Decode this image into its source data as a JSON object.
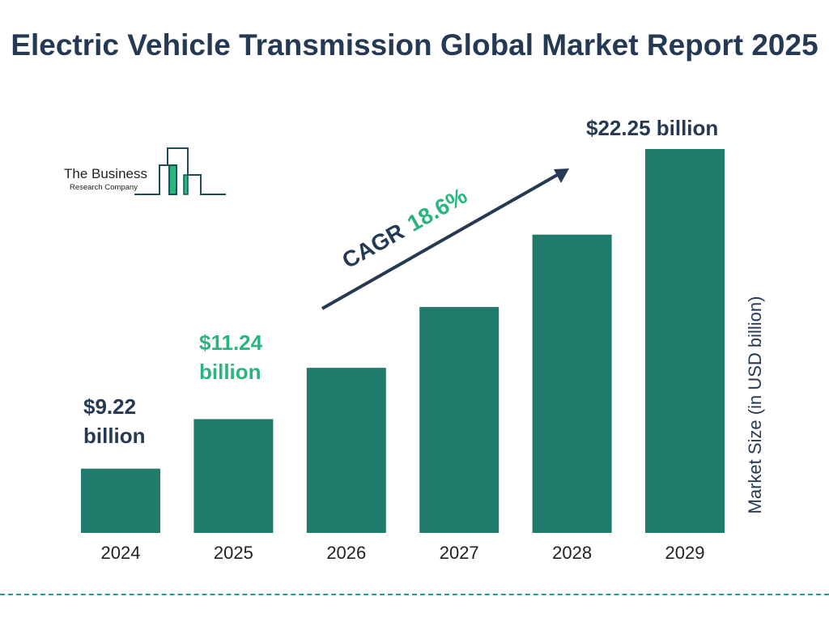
{
  "title": "Electric Vehicle Transmission Global Market Report 2025",
  "logo": {
    "line1": "The Business",
    "line2": "Research Company"
  },
  "cagr": {
    "label": "CAGR",
    "value": "18.6%"
  },
  "colors": {
    "bar": "#217b6c",
    "title": "#253a52",
    "accent": "#2bb57e"
  },
  "chart_data": {
    "type": "bar",
    "categories": [
      "2024",
      "2025",
      "2026",
      "2027",
      "2028",
      "2029"
    ],
    "values": [
      9.22,
      11.24,
      13.33,
      15.81,
      18.76,
      22.25
    ],
    "data_labels": {
      "2024": "$9.22 billion",
      "2025": "$11.24 billion",
      "2029": "$22.25 billion"
    },
    "ylabel": "Market Size (in USD billion)",
    "ylim": [
      6.6,
      22.25
    ],
    "grid": false
  }
}
